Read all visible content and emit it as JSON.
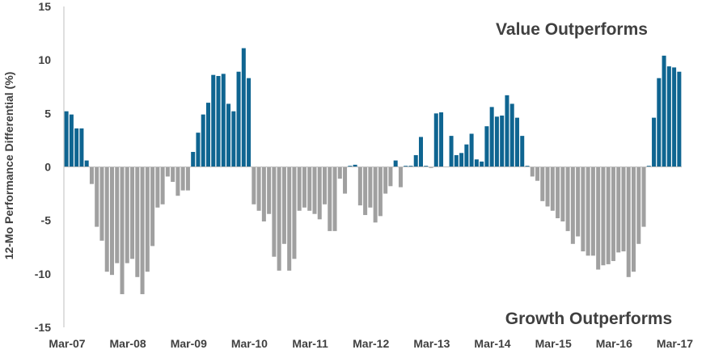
{
  "chart_data": {
    "type": "bar",
    "ylabel": "12-Mo Performance Differential (%)",
    "ylim": [
      -15,
      15
    ],
    "yticks": [
      15,
      10,
      5,
      0,
      -5,
      -10,
      -15
    ],
    "xtick_labels": [
      "Mar-07",
      "Mar-08",
      "Mar-09",
      "Mar-10",
      "Mar-11",
      "Mar-12",
      "Mar-13",
      "Mar-14",
      "Mar-15",
      "Mar-16",
      "Mar-17"
    ],
    "start_label": "Mar-07",
    "annotations": {
      "top": "Value Outperforms",
      "bottom": "Growth Outperforms"
    },
    "colors": {
      "positive": "#0f6591",
      "negative": "#a0a0a0",
      "axis": "#bfbfbf",
      "text": "#404040"
    },
    "values": [
      5.2,
      4.9,
      3.6,
      3.6,
      0.6,
      -1.6,
      -5.6,
      -6.9,
      -9.8,
      -10.1,
      -9.0,
      -11.9,
      -9.0,
      -8.6,
      -10.3,
      -11.9,
      -9.8,
      -7.4,
      -3.8,
      -3.5,
      -0.9,
      -1.4,
      -2.7,
      -2.2,
      -2.2,
      1.4,
      3.2,
      4.9,
      6.0,
      8.6,
      8.5,
      8.7,
      5.9,
      5.2,
      8.9,
      11.1,
      8.3,
      -3.5,
      -4.1,
      -5.1,
      -4.4,
      -8.4,
      -9.7,
      -7.2,
      -9.7,
      -8.6,
      -4.1,
      -3.8,
      -4.1,
      -4.4,
      -4.9,
      -3.5,
      -6.0,
      -6.0,
      -1.1,
      -2.5,
      0.1,
      0.2,
      -3.6,
      -4.5,
      -3.8,
      -5.2,
      -4.6,
      -2.5,
      -1.8,
      0.6,
      -1.9,
      0.1,
      0.1,
      1.1,
      2.8,
      0.1,
      -0.1,
      5.0,
      5.1,
      0.0,
      2.9,
      1.1,
      1.3,
      2.1,
      3.1,
      0.7,
      0.5,
      3.8,
      5.6,
      4.7,
      4.8,
      6.7,
      5.9,
      4.6,
      2.9,
      0.1,
      -0.9,
      -1.3,
      -3.2,
      -3.7,
      -4.1,
      -4.8,
      -5.1,
      -6.0,
      -7.2,
      -6.5,
      -7.9,
      -8.3,
      -8.3,
      -9.6,
      -9.2,
      -9.1,
      -8.8,
      -8.0,
      -7.9,
      -10.3,
      -9.8,
      -7.2,
      -5.6,
      0.1,
      4.6,
      8.3,
      10.4,
      9.4,
      9.3,
      8.9
    ]
  }
}
